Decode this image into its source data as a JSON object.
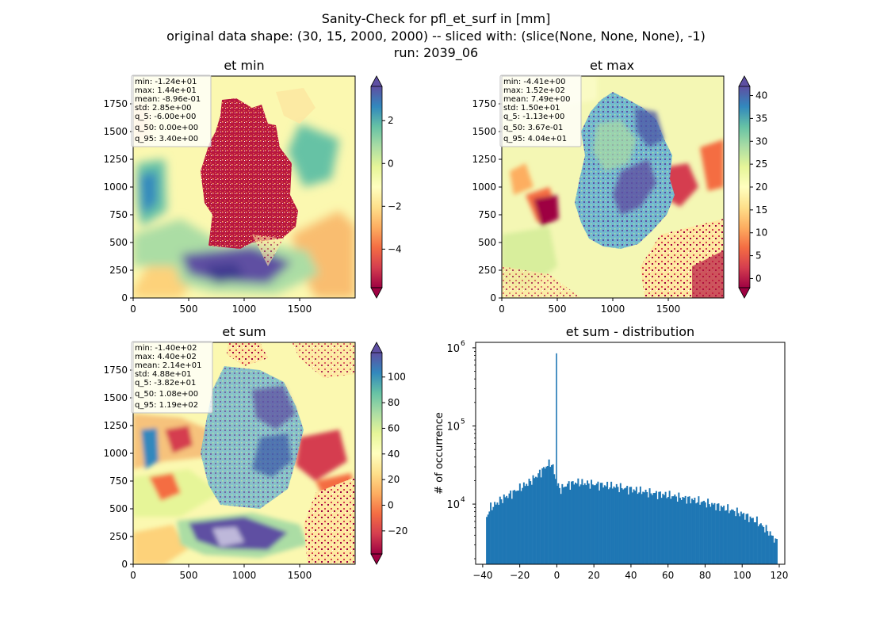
{
  "suptitle": {
    "line1": "Sanity-Check for pfl_et_surf in [mm]",
    "line2": "original data shape: (30, 15, 2000, 2000) -- sliced with: (slice(None, None, None), -1)",
    "line3": "run: 2039_06"
  },
  "colors": {
    "spectral": [
      "#9e0142",
      "#d53e4f",
      "#f46d43",
      "#fdae61",
      "#fee08b",
      "#ffffbf",
      "#e6f598",
      "#abdda4",
      "#66c2a5",
      "#3288bd",
      "#5e4fa2"
    ],
    "hist_bar": "#1f77b4",
    "stats_box_edge": "#c0c0c0"
  },
  "chart_data": [
    {
      "type": "heatmap",
      "name": "et-min",
      "title": "et min",
      "xlim": [
        0,
        2000
      ],
      "ylim": [
        0,
        2000
      ],
      "xticks": [
        "0",
        "500",
        "1000",
        "1500"
      ],
      "yticks": [
        "0",
        "250",
        "500",
        "750",
        "1000",
        "1250",
        "1500",
        "1750"
      ],
      "colorbar": {
        "vmin": -5.8,
        "vmax": 3.6,
        "ticks": [
          "−4",
          "−2",
          "0",
          "2"
        ],
        "tick_values": [
          -4,
          -2,
          0,
          2
        ],
        "extend": "both",
        "cmap": "Spectral"
      },
      "stats": [
        "min: -1.24e+01",
        "max: 1.44e+01",
        "mean: -8.96e-01",
        "std: 2.85e+00",
        "q_5: -6.00e+00",
        "q_50: 0.00e+00",
        "q_95: 3.40e+00"
      ]
    },
    {
      "type": "heatmap",
      "name": "et-max",
      "title": "et max",
      "xlim": [
        0,
        2000
      ],
      "ylim": [
        0,
        2000
      ],
      "xticks": [
        "0",
        "500",
        "1000",
        "1500"
      ],
      "yticks": [
        "0",
        "250",
        "500",
        "750",
        "1000",
        "1250",
        "1500",
        "1750"
      ],
      "colorbar": {
        "vmin": -2,
        "vmax": 42,
        "ticks": [
          "0",
          "5",
          "10",
          "15",
          "20",
          "25",
          "30",
          "35",
          "40"
        ],
        "tick_values": [
          0,
          5,
          10,
          15,
          20,
          25,
          30,
          35,
          40
        ],
        "extend": "both",
        "cmap": "Spectral"
      },
      "stats": [
        "min: -4.41e+00",
        "max: 1.52e+02",
        "mean: 7.49e+00",
        "std: 1.50e+01",
        "q_5: -1.13e+00",
        "q_50: 3.67e-01",
        "q_95: 4.04e+01"
      ]
    },
    {
      "type": "heatmap",
      "name": "et-sum",
      "title": "et sum",
      "xlim": [
        0,
        2000
      ],
      "ylim": [
        0,
        2000
      ],
      "xticks": [
        "0",
        "500",
        "1000",
        "1500"
      ],
      "yticks": [
        "0",
        "250",
        "500",
        "750",
        "1000",
        "1250",
        "1500",
        "1750"
      ],
      "colorbar": {
        "vmin": -38,
        "vmax": 119,
        "ticks": [
          "−20",
          "0",
          "20",
          "40",
          "60",
          "80",
          "100"
        ],
        "tick_values": [
          -20,
          0,
          20,
          40,
          60,
          80,
          100
        ],
        "extend": "both",
        "cmap": "Spectral"
      },
      "stats": [
        "min: -1.40e+02",
        "max: 4.40e+02",
        "mean: 2.14e+01",
        "std: 4.88e+01",
        "q_5: -3.82e+01",
        "q_50: 1.08e+00",
        "q_95: 1.19e+02"
      ]
    },
    {
      "type": "bar",
      "name": "et-sum-distribution",
      "title": "et sum - distribution",
      "ylabel": "# of occurrence",
      "xlabel": "",
      "yscale": "log",
      "xlim": [
        -43.8,
        123
      ],
      "ylim_log10": [
        3.23,
        6.07
      ],
      "xticks": [
        "−40",
        "−20",
        "0",
        "20",
        "40",
        "60",
        "80",
        "100",
        "120"
      ],
      "xtick_values": [
        -40,
        -20,
        0,
        20,
        40,
        60,
        80,
        100,
        120
      ],
      "yticks": [
        "10",
        "10",
        "10"
      ],
      "ytick_exponents": [
        "4",
        "5",
        "6"
      ],
      "ytick_values": [
        10000,
        100000,
        1000000
      ],
      "x_range": [
        -38.2,
        119
      ],
      "peak": {
        "x": 0,
        "count": 850000
      },
      "profile": [
        [
          -38.2,
          6500
        ],
        [
          -36,
          9000
        ],
        [
          -33,
          10000
        ],
        [
          -30,
          11500
        ],
        [
          -25,
          13500
        ],
        [
          -20,
          16000
        ],
        [
          -15,
          19000
        ],
        [
          -10,
          24000
        ],
        [
          -5,
          32000
        ],
        [
          -3,
          34000
        ],
        [
          -1.5,
          26000
        ],
        [
          -0.5,
          20000
        ],
        [
          0.5,
          17000
        ],
        [
          2,
          15500
        ],
        [
          5,
          17500
        ],
        [
          10,
          19000
        ],
        [
          15,
          18500
        ],
        [
          20,
          18000
        ],
        [
          30,
          17000
        ],
        [
          40,
          15500
        ],
        [
          50,
          14000
        ],
        [
          60,
          13000
        ],
        [
          70,
          11800
        ],
        [
          80,
          10500
        ],
        [
          90,
          9000
        ],
        [
          100,
          7500
        ],
        [
          108,
          6000
        ],
        [
          114,
          4500
        ],
        [
          119,
          3200
        ]
      ]
    }
  ]
}
